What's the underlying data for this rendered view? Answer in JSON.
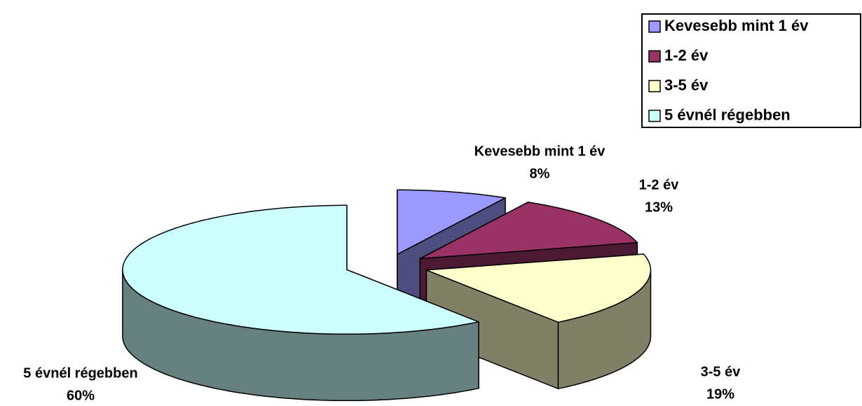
{
  "chart_data": {
    "type": "pie3d",
    "categories": [
      "Kevesebb mint 1 év",
      "1-2 év",
      "3-5 év",
      "5 évnél régebben"
    ],
    "values": [
      8,
      13,
      19,
      60
    ],
    "value_labels": [
      "8%",
      "13%",
      "19%",
      "60%"
    ],
    "colors": [
      "#9999ff",
      "#993366",
      "#ffffcc",
      "#ccffff"
    ],
    "legend": "top-right"
  }
}
